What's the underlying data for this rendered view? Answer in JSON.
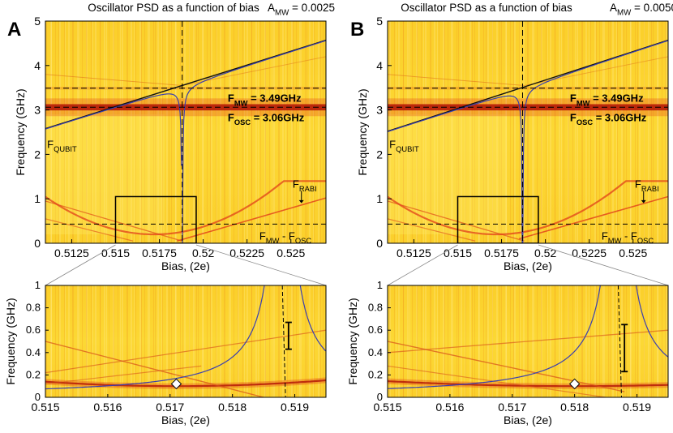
{
  "chart_data": [
    {
      "type": "heatmap",
      "panel_letter": "A",
      "title": "Oscillator PSD as a function of bias",
      "amp_label_main": "A",
      "amp_label_sub": "MW",
      "amp_value": " = 0.0025",
      "xlabel": "Bias, (2e)",
      "ylabel": "Frequency (GHz)",
      "xlim": [
        0.511,
        0.527
      ],
      "ylim": [
        0,
        5
      ],
      "xticks": [
        "0.5125",
        "0.515",
        "0.5175",
        "0.52",
        "0.5225",
        "0.525"
      ],
      "yticks": [
        "0",
        "1",
        "2",
        "3",
        "4",
        "5"
      ],
      "f_mw": 3.49,
      "f_osc": 3.06,
      "resonance_bias": 0.5188,
      "qubit_line": {
        "bias": [
          0.511,
          0.527
        ],
        "freq": [
          2.58,
          4.57
        ]
      },
      "rabi_line": {
        "bias": [
          0.5185,
          0.527
        ],
        "freq": [
          0.05,
          1.02
        ]
      },
      "zoom_box": {
        "bias": [
          0.515,
          0.5196
        ],
        "freq": [
          0,
          1.05
        ]
      },
      "labels": {
        "f_mw": {
          "main": "F",
          "sub": "MW",
          "value": " = 3.49GHz"
        },
        "f_osc": {
          "main": "F",
          "sub": "OSC",
          "value": " = 3.06GHz"
        },
        "f_qubit": {
          "main": "F",
          "sub": "QUBIT"
        },
        "f_rabi": {
          "main": "F",
          "sub": "RABI"
        },
        "f_diff": {
          "main1": "F",
          "sub1": "MW",
          "mid": " - F",
          "sub2": "OSC"
        }
      },
      "zoom": {
        "xlabel": "Bias, (2e)",
        "ylabel": "Frequency (GHz)",
        "xlim": [
          0.515,
          0.5195
        ],
        "ylim": [
          0,
          1
        ],
        "xticks": [
          "0.515",
          "0.516",
          "0.517",
          "0.518",
          "0.519"
        ],
        "yticks": [
          "0",
          "0.2",
          "0.4",
          "0.6",
          "0.8",
          "1"
        ],
        "diamond": {
          "bias": 0.5171,
          "freq": 0.12
        },
        "splitting_bar": {
          "bias": 0.5189,
          "freq": [
            0.43,
            0.67
          ]
        }
      }
    },
    {
      "type": "heatmap",
      "panel_letter": "B",
      "title": "Oscillator PSD as a function of bias",
      "amp_label_main": "A",
      "amp_label_sub": "MW",
      "amp_value": " = 0.0050",
      "xlabel": "Bias, (2e)",
      "ylabel": "Frequency (GHz)",
      "xlim": [
        0.511,
        0.527
      ],
      "ylim": [
        0,
        5
      ],
      "xticks": [
        "0.5125",
        "0.515",
        "0.5175",
        "0.52",
        "0.5225",
        "0.525"
      ],
      "yticks": [
        "0",
        "1",
        "2",
        "3",
        "4",
        "5"
      ],
      "f_mw": 3.49,
      "f_osc": 3.06,
      "resonance_bias": 0.5187,
      "qubit_line": {
        "bias": [
          0.511,
          0.527
        ],
        "freq": [
          2.52,
          4.57
        ]
      },
      "rabi_line": {
        "bias": [
          0.5185,
          0.527
        ],
        "freq": [
          0.1,
          1.05
        ]
      },
      "zoom_box": {
        "bias": [
          0.515,
          0.5196
        ],
        "freq": [
          0,
          1.05
        ]
      },
      "labels": {
        "f_mw": {
          "main": "F",
          "sub": "MW",
          "value": " = 3.49GHz"
        },
        "f_osc": {
          "main": "F",
          "sub": "OSC",
          "value": " = 3.06GHz"
        },
        "f_qubit": {
          "main": "F",
          "sub": "QUBIT"
        },
        "f_rabi": {
          "main": "F",
          "sub": "RABI"
        },
        "f_diff": {
          "main1": "F",
          "sub1": "MW",
          "mid": " - F",
          "sub2": "OSC"
        }
      },
      "zoom": {
        "xlabel": "Bias, (2e)",
        "ylabel": "Frequency (GHz)",
        "xlim": [
          0.515,
          0.5195
        ],
        "ylim": [
          0,
          1
        ],
        "xticks": [
          "0.515",
          "0.516",
          "0.517",
          "0.518",
          "0.519"
        ],
        "yticks": [
          "0",
          "0.2",
          "0.4",
          "0.6",
          "0.8",
          "1"
        ],
        "diamond": {
          "bias": 0.518,
          "freq": 0.12
        },
        "splitting_bar": {
          "bias": 0.5188,
          "freq": [
            0.23,
            0.65
          ]
        }
      }
    }
  ],
  "colors": {
    "background": "#fbcf2a",
    "accent_light": "#ffe765",
    "band": "#e2401a",
    "band_dark": "#b21206",
    "fit_curve": "#3a3fb0",
    "guide": "#000000"
  }
}
